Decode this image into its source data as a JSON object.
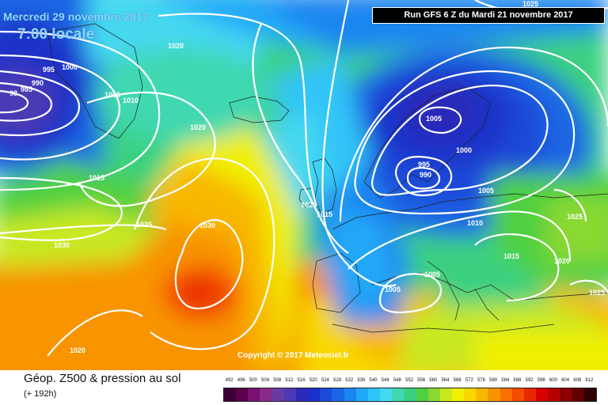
{
  "header": {
    "date": "Mercredi 29 novembre 2017",
    "time": "7:00 locale",
    "run": "Run GFS 6 Z du Mardi 21 novembre 2017"
  },
  "copyright": "Copyright © 2017 Meteociel.fr",
  "legend": {
    "title": "Géop. Z500 & pression au sol",
    "subtitle": "(+ 192h)",
    "scale": [
      "492",
      "496",
      "500",
      "504",
      "508",
      "512",
      "516",
      "520",
      "524",
      "528",
      "532",
      "536",
      "540",
      "544",
      "548",
      "552",
      "556",
      "560",
      "564",
      "568",
      "572",
      "576",
      "580",
      "584",
      "588",
      "592",
      "596",
      "600",
      "604",
      "608",
      "612"
    ],
    "colors": [
      "#3a0034",
      "#5a004c",
      "#7a1070",
      "#8a2b8c",
      "#6a3aa4",
      "#4a3ab4",
      "#2a2ab8",
      "#1a30c8",
      "#1a4ad8",
      "#1a66e4",
      "#1a86f0",
      "#20a8f8",
      "#30c4f8",
      "#44d8f0",
      "#40d8b0",
      "#3ad080",
      "#50d040",
      "#8ad830",
      "#c8e820",
      "#f0f000",
      "#f8d800",
      "#f8b800",
      "#f89400",
      "#f87000",
      "#f44c00",
      "#e82800",
      "#d80000",
      "#b40000",
      "#8c0000",
      "#600000",
      "#300000"
    ]
  },
  "isobars": [
    "990",
    "995",
    "1000",
    "1005",
    "1010",
    "1015",
    "1020",
    "1025",
    "1030",
    "985",
    "980"
  ],
  "pressure_labels": [
    {
      "v": "1025"
    },
    {
      "v": "1020"
    },
    {
      "v": "1000"
    },
    {
      "v": "995"
    },
    {
      "v": "990"
    },
    {
      "v": "985"
    },
    {
      "v": "98"
    },
    {
      "v": "1005"
    },
    {
      "v": "1010"
    },
    {
      "v": "1020"
    },
    {
      "v": "1015"
    },
    {
      "v": "1025"
    },
    {
      "v": "1030"
    },
    {
      "v": "1030"
    },
    {
      "v": "1020"
    },
    {
      "v": "1015"
    },
    {
      "v": "1020"
    },
    {
      "v": "1005"
    },
    {
      "v": "1000"
    },
    {
      "v": "995"
    },
    {
      "v": "990"
    },
    {
      "v": "1005"
    },
    {
      "v": "1010"
    },
    {
      "v": "1015"
    },
    {
      "v": "1005"
    },
    {
      "v": "1005"
    },
    {
      "v": "1025"
    },
    {
      "v": "1020"
    },
    {
      "v": "1025"
    },
    {
      "v": "1020"
    }
  ]
}
